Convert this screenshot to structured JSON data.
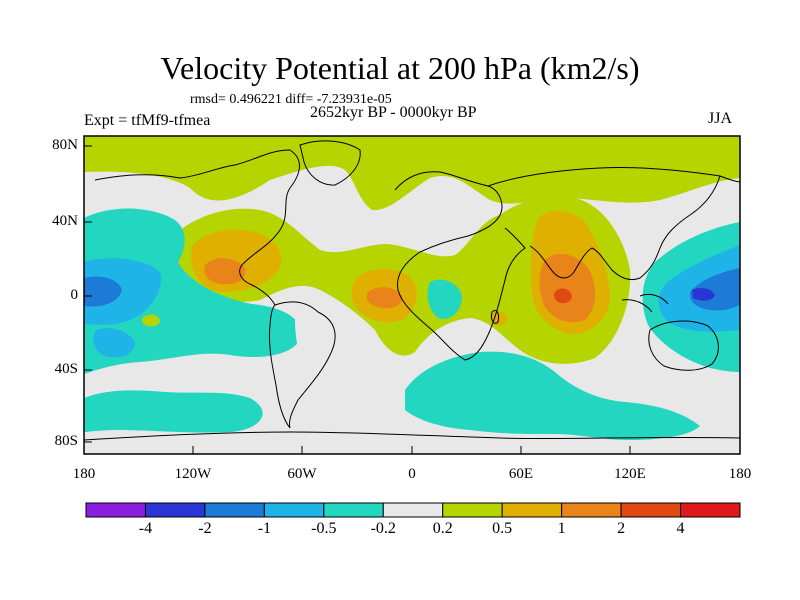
{
  "title": "Velocity Potential at 200 hPa (km2/s)",
  "stats": "rmsd= 0.496221 diff= -7.23931e-05",
  "experiment": "Expt = tfMf9-tfmea",
  "period": "2652kyr BP - 0000kyr BP",
  "season": "JJA",
  "lat_labels": [
    "80N",
    "40N",
    "0",
    "40S",
    "80S"
  ],
  "lon_labels": [
    "180",
    "120W",
    "60W",
    "0",
    "60E",
    "120E",
    "180"
  ],
  "colorbar": {
    "colors": [
      "#8a1fe0",
      "#2a35d6",
      "#1c7bd6",
      "#1fb4e8",
      "#22d6c0",
      "#e8e8e8",
      "#b5d400",
      "#e0b000",
      "#e8841a",
      "#e04a10",
      "#e01a1a"
    ],
    "labels": [
      "-4",
      "-2",
      "-1",
      "-0.5",
      "-0.2",
      "0.2",
      "0.5",
      "1",
      "2",
      "4"
    ]
  },
  "fields": {
    "zero": "#e8e8e8",
    "pos1": "#b5d400",
    "pos2": "#e0b000",
    "pos3": "#e8841a",
    "pos4": "#e04a10",
    "neg1": "#22d6c0",
    "neg2": "#1fb4e8",
    "neg3": "#1c7bd6",
    "neg4": "#2a35d6"
  }
}
